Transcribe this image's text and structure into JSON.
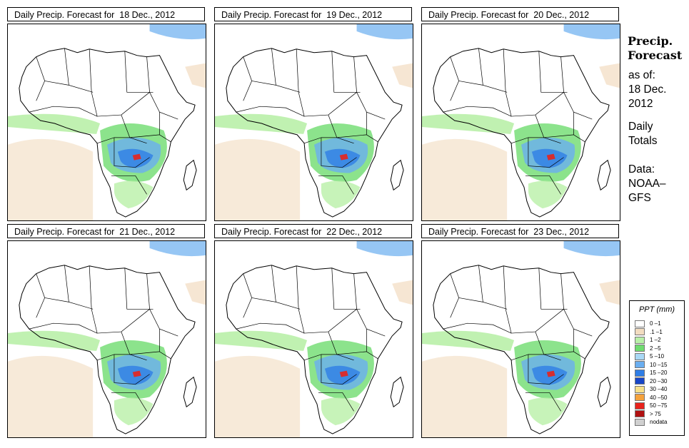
{
  "panels": [
    {
      "title": "Daily Precip. Forecast for  18 Dec., 2012"
    },
    {
      "title": "Daily Precip. Forecast for  19 Dec., 2012"
    },
    {
      "title": "Daily Precip. Forecast for  20 Dec., 2012"
    },
    {
      "title": "Daily Precip. Forecast for  21 Dec., 2012"
    },
    {
      "title": "Daily Precip. Forecast for  22 Dec., 2012"
    },
    {
      "title": "Daily Precip. Forecast for  23 Dec., 2012"
    }
  ],
  "sidebar": {
    "heading_line1": "Precip.",
    "heading_line2": "Forecast",
    "asof_line1": "as of:",
    "asof_line2": "18 Dec.",
    "asof_line3": "2012",
    "daily_line1": "Daily",
    "daily_line2": "Totals",
    "data_line1": "Data:",
    "data_line2": "NOAA–",
    "data_line3": "GFS"
  },
  "legend": {
    "title": "PPT (mm)",
    "items": [
      {
        "label": "0 –1",
        "color": "#ffffff"
      },
      {
        "label": ".1 –1",
        "color": "#f2dcc0"
      },
      {
        "label": "1 –2",
        "color": "#b9f0a8"
      },
      {
        "label": "2 –5",
        "color": "#6fdc6f"
      },
      {
        "label": "5 –10",
        "color": "#a9d8f5"
      },
      {
        "label": "10 –15",
        "color": "#6aaef0"
      },
      {
        "label": "15 –20",
        "color": "#2f7ee6"
      },
      {
        "label": "20 –30",
        "color": "#1846c8"
      },
      {
        "label": "30 –40",
        "color": "#f7e08a"
      },
      {
        "label": "40 –50",
        "color": "#f5a23c"
      },
      {
        "label": "50 –75",
        "color": "#e8221c"
      },
      {
        "label": "> 75",
        "color": "#b01010"
      },
      {
        "label": "nodata",
        "color": "#d0d0d0"
      }
    ]
  }
}
